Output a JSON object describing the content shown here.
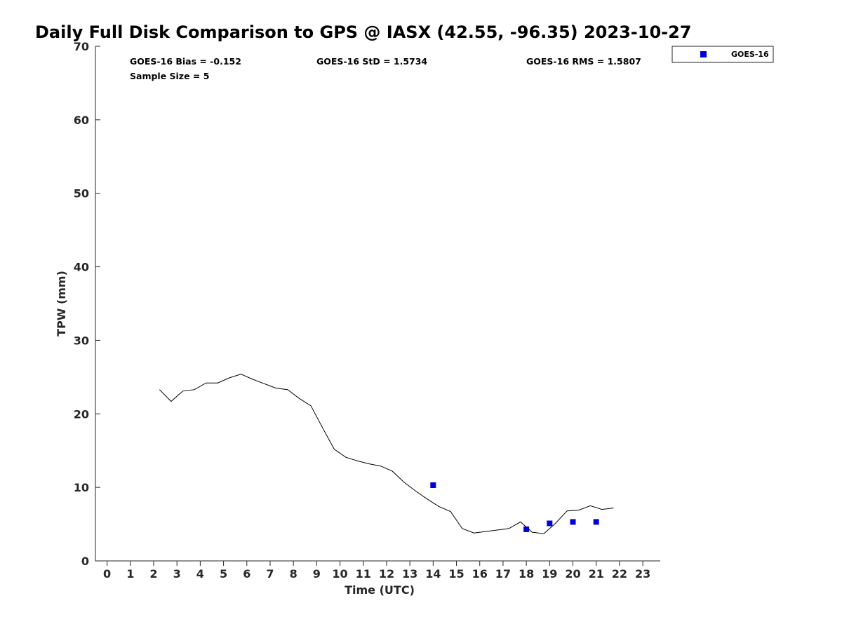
{
  "chart_data": {
    "type": "scatter",
    "title": "Daily Full Disk Comparison to GPS @ IASX (42.55, -96.35) 2023-10-27",
    "xlabel": "Time (UTC)",
    "ylabel": "TPW (mm)",
    "xlim": [
      -0.5,
      23.75
    ],
    "ylim": [
      0,
      70
    ],
    "xticks": [
      0,
      1,
      2,
      3,
      4,
      5,
      6,
      7,
      8,
      9,
      10,
      11,
      12,
      13,
      14,
      15,
      16,
      17,
      18,
      19,
      20,
      21,
      22,
      23
    ],
    "yticks": [
      0,
      10,
      20,
      30,
      40,
      50,
      60,
      70
    ],
    "grid": false,
    "legend_position": "outside top-right",
    "stats": {
      "bias": "GOES-16 Bias = -0.152",
      "std": "GOES-16 StD = 1.5734",
      "rms": "GOES-16 RMS = 1.5807",
      "sample": "Sample Size = 5"
    },
    "gps_line": {
      "color": "#000000",
      "x": [
        2.25,
        2.75,
        3.25,
        3.75,
        4.25,
        4.75,
        5.25,
        5.75,
        6.25,
        6.75,
        7.25,
        7.75,
        8.25,
        8.75,
        9.25,
        9.75,
        10.25,
        10.75,
        11.25,
        11.75,
        12.25,
        12.75,
        13.25,
        13.75,
        14.25,
        14.75,
        15.25,
        15.75,
        16.25,
        16.75,
        17.25,
        17.75,
        18.25,
        18.75,
        19.25,
        19.75,
        20.25,
        20.75,
        21.25,
        21.75
      ],
      "y": [
        23.3,
        21.7,
        23.1,
        23.3,
        24.2,
        24.2,
        24.9,
        25.4,
        24.7,
        24.1,
        23.5,
        23.3,
        22.1,
        21.1,
        18.1,
        15.2,
        14.1,
        13.6,
        13.2,
        12.9,
        12.2,
        10.7,
        9.5,
        8.4,
        7.4,
        6.7,
        4.4,
        3.8,
        4.0,
        4.2,
        4.4,
        5.3,
        3.9,
        3.7,
        5.1,
        6.8,
        6.9,
        7.5,
        7.0,
        7.2
      ]
    },
    "series": [
      {
        "name": "GOES-16",
        "color": "#0000dd",
        "x": [
          14,
          18,
          19,
          20,
          21
        ],
        "y": [
          10.3,
          4.3,
          5.1,
          5.3,
          5.3
        ]
      }
    ]
  }
}
